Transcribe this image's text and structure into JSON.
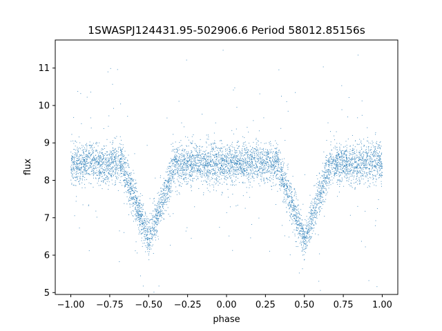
{
  "chart_data": {
    "type": "scatter",
    "title": "1SWASPJ124431.95-502906.6 Period 58012.85156s",
    "xlabel": "phase",
    "ylabel": "flux",
    "xlim": [
      -1.1,
      1.1
    ],
    "ylim": [
      4.95,
      11.75
    ],
    "x_ticks": [
      -1.0,
      -0.75,
      -0.5,
      -0.25,
      0.0,
      0.25,
      0.5,
      0.75,
      1.0
    ],
    "x_tick_labels": [
      "−1.00",
      "−0.75",
      "−0.50",
      "−0.25",
      "0.00",
      "0.25",
      "0.50",
      "0.75",
      "1.00"
    ],
    "y_ticks": [
      5,
      6,
      7,
      8,
      9,
      10,
      11
    ],
    "y_tick_labels": [
      "5",
      "6",
      "7",
      "8",
      "9",
      "10",
      "11"
    ],
    "grid": false,
    "legend": "none",
    "marker_color": "#1f77b4",
    "series": [
      {
        "phase_range": [
          -1.0,
          1.0
        ],
        "baseline_flux": 8.45,
        "baseline_spread": 0.35,
        "eclipses": [
          {
            "center_phase": -0.5,
            "min_flux": 6.4,
            "half_width_phase": 0.17
          },
          {
            "center_phase": 0.5,
            "min_flux": 6.4,
            "half_width_phase": 0.17
          }
        ]
      }
    ]
  }
}
